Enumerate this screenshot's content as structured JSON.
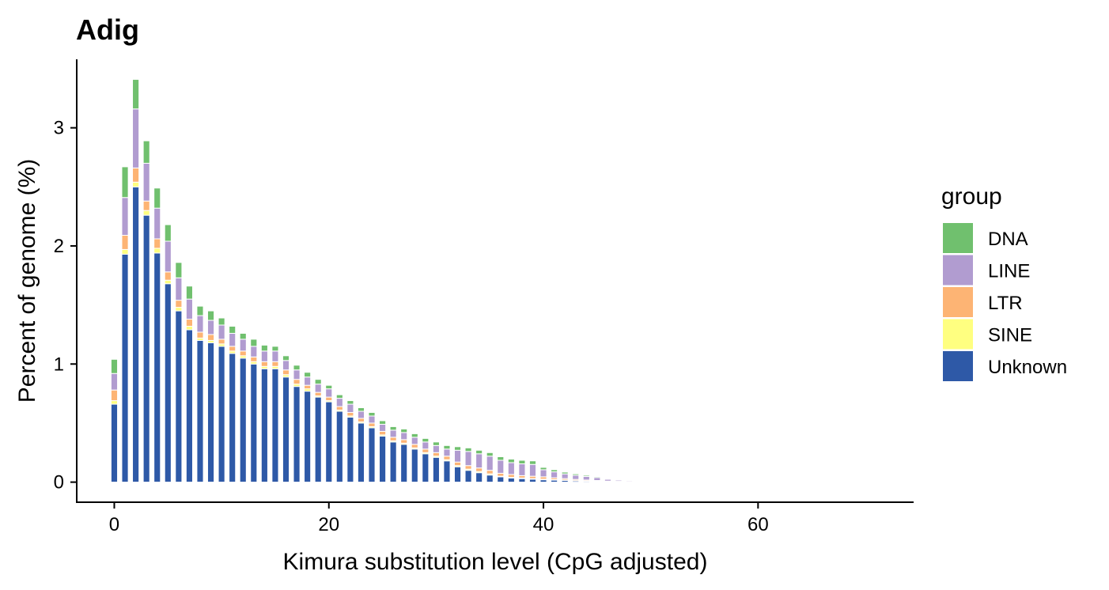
{
  "chart_data": {
    "type": "bar",
    "stacked": true,
    "title": "Adig",
    "xlabel": "Kimura substitution level (CpG adjusted)",
    "ylabel": "Percent of genome (%)",
    "xlim": [
      -3.5,
      74.5
    ],
    "ylim": [
      -0.17,
      3.58
    ],
    "xticks": [
      0,
      20,
      40,
      60
    ],
    "yticks": [
      0,
      1,
      2,
      3
    ],
    "grid": false,
    "legend": {
      "title": "group",
      "position": "right"
    },
    "x": [
      0,
      1,
      2,
      3,
      4,
      5,
      6,
      7,
      8,
      9,
      10,
      11,
      12,
      13,
      14,
      15,
      16,
      17,
      18,
      19,
      20,
      21,
      22,
      23,
      24,
      25,
      26,
      27,
      28,
      29,
      30,
      31,
      32,
      33,
      34,
      35,
      36,
      37,
      38,
      39,
      40,
      41,
      42,
      43,
      44,
      45,
      46,
      47,
      48,
      49,
      50,
      51,
      52,
      53,
      54,
      55
    ],
    "series": [
      {
        "name": "Unknown",
        "color": "#2E59A7",
        "values": [
          0.66,
          1.93,
          2.5,
          2.26,
          1.94,
          1.68,
          1.45,
          1.29,
          1.2,
          1.18,
          1.15,
          1.09,
          1.05,
          1.0,
          0.96,
          0.96,
          0.89,
          0.81,
          0.77,
          0.72,
          0.68,
          0.6,
          0.55,
          0.5,
          0.46,
          0.39,
          0.34,
          0.32,
          0.28,
          0.24,
          0.21,
          0.18,
          0.13,
          0.1,
          0.08,
          0.06,
          0.045,
          0.035,
          0.03,
          0.025,
          0.02,
          0.017,
          0.014,
          0.01,
          0.008,
          0.006,
          0.004,
          0.003,
          0.002,
          0.001,
          0.001,
          0.001,
          0.0005,
          0.0005,
          0.0003,
          0.0002
        ]
      },
      {
        "name": "SINE",
        "color": "#FFFF80",
        "values": [
          0.03,
          0.04,
          0.04,
          0.04,
          0.04,
          0.03,
          0.03,
          0.03,
          0.02,
          0.02,
          0.02,
          0.02,
          0.02,
          0.02,
          0.02,
          0.02,
          0.02,
          0.02,
          0.02,
          0.01,
          0.01,
          0.01,
          0.01,
          0.01,
          0.01,
          0.01,
          0.01,
          0.01,
          0.01,
          0.01,
          0.01,
          0.01,
          0.01,
          0.01,
          0.01,
          0.01,
          0.005,
          0.005,
          0.005,
          0.005,
          0.005,
          0.005,
          0.004,
          0.003,
          0.002,
          0.002,
          0.001,
          0.001,
          0.001,
          0.0005,
          0.0003,
          0.0002,
          0.0001,
          0.0001,
          0.0001,
          0.0001
        ]
      },
      {
        "name": "LTR",
        "color": "#FDB474",
        "values": [
          0.09,
          0.12,
          0.12,
          0.08,
          0.08,
          0.07,
          0.06,
          0.06,
          0.05,
          0.05,
          0.04,
          0.04,
          0.04,
          0.04,
          0.04,
          0.04,
          0.04,
          0.04,
          0.03,
          0.03,
          0.03,
          0.03,
          0.03,
          0.03,
          0.03,
          0.03,
          0.03,
          0.03,
          0.03,
          0.03,
          0.03,
          0.03,
          0.03,
          0.03,
          0.03,
          0.03,
          0.025,
          0.025,
          0.02,
          0.02,
          0.02,
          0.015,
          0.012,
          0.01,
          0.008,
          0.006,
          0.004,
          0.003,
          0.002,
          0.001,
          0.001,
          0.0005,
          0.0003,
          0.0002,
          0.0002,
          0.0001
        ]
      },
      {
        "name": "LINE",
        "color": "#B19CD0",
        "values": [
          0.14,
          0.32,
          0.5,
          0.32,
          0.26,
          0.26,
          0.19,
          0.17,
          0.14,
          0.12,
          0.12,
          0.11,
          0.1,
          0.09,
          0.09,
          0.09,
          0.08,
          0.08,
          0.07,
          0.07,
          0.07,
          0.07,
          0.07,
          0.06,
          0.06,
          0.06,
          0.06,
          0.06,
          0.06,
          0.06,
          0.06,
          0.06,
          0.1,
          0.12,
          0.12,
          0.12,
          0.11,
          0.1,
          0.1,
          0.1,
          0.06,
          0.05,
          0.04,
          0.035,
          0.03,
          0.025,
          0.015,
          0.01,
          0.008,
          0.006,
          0.004,
          0.003,
          0.002,
          0.0015,
          0.001,
          0.0005
        ]
      },
      {
        "name": "DNA",
        "color": "#70C06E",
        "values": [
          0.12,
          0.26,
          0.25,
          0.19,
          0.17,
          0.14,
          0.13,
          0.11,
          0.08,
          0.08,
          0.06,
          0.06,
          0.05,
          0.06,
          0.05,
          0.04,
          0.04,
          0.04,
          0.04,
          0.04,
          0.03,
          0.03,
          0.03,
          0.03,
          0.03,
          0.03,
          0.03,
          0.03,
          0.03,
          0.03,
          0.03,
          0.03,
          0.03,
          0.03,
          0.03,
          0.03,
          0.03,
          0.03,
          0.03,
          0.03,
          0.02,
          0.018,
          0.015,
          0.012,
          0.01,
          0.008,
          0.005,
          0.004,
          0.003,
          0.002,
          0.0015,
          0.001,
          0.0008,
          0.0005,
          0.0005,
          0.0003
        ]
      }
    ],
    "legend_order": [
      "DNA",
      "LINE",
      "LTR",
      "SINE",
      "Unknown"
    ]
  }
}
